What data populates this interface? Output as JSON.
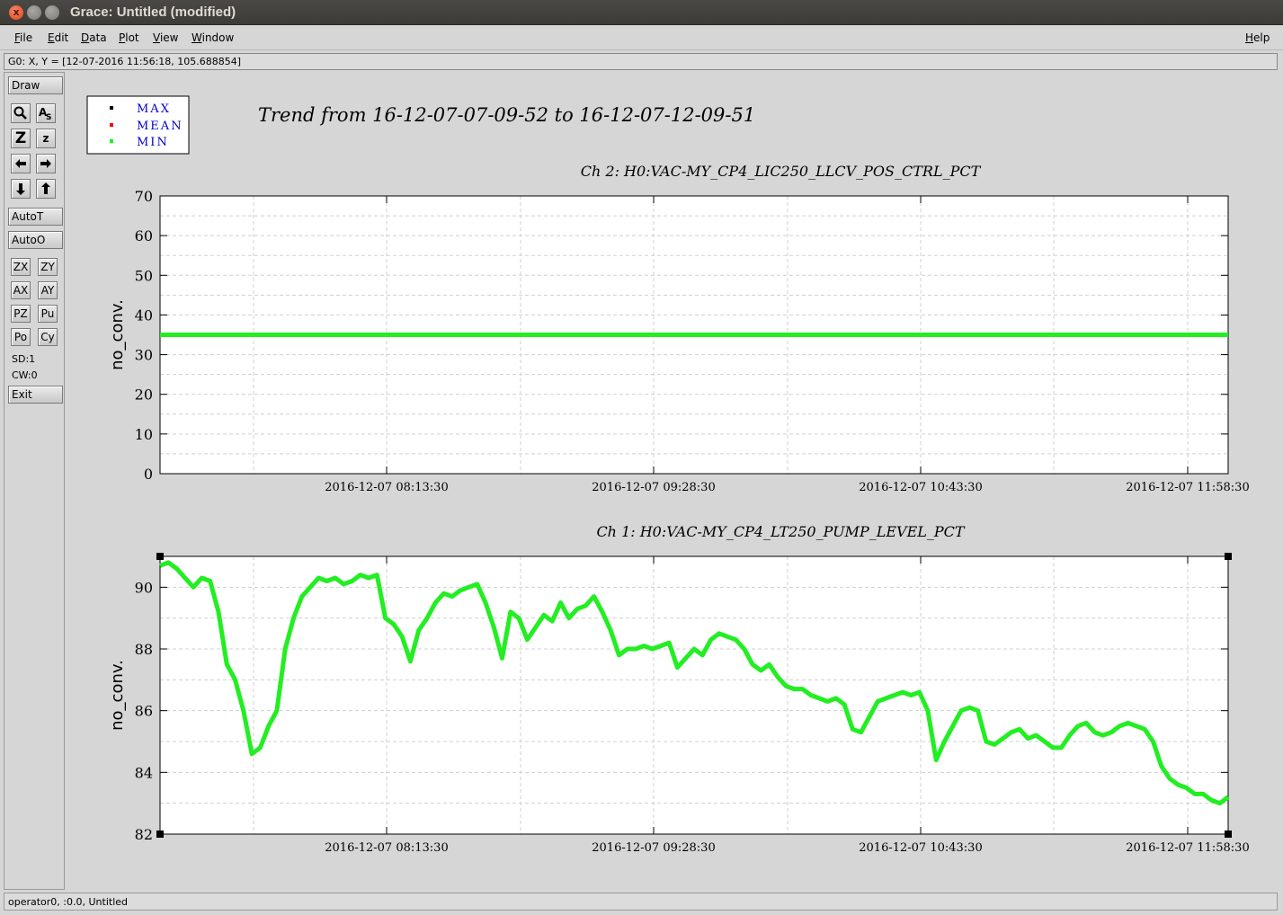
{
  "window": {
    "title": "Grace: Untitled (modified)",
    "close_glyph": "x"
  },
  "menu": {
    "items": [
      "File",
      "Edit",
      "Data",
      "Plot",
      "View",
      "Window"
    ],
    "help": "Help"
  },
  "locator": "G0: X, Y = [12-07-2016 11:56:18, 105.688854]",
  "toolbar": {
    "draw": "Draw",
    "autot": "AutoT",
    "autoo": "AutoO",
    "zx": "ZX",
    "zy": "ZY",
    "ax": "AX",
    "ay": "AY",
    "pz": "PZ",
    "pu": "Pu",
    "po": "Po",
    "cy": "Cy",
    "sd": "SD:1",
    "cw": "CW:0",
    "exit": "Exit",
    "icons": [
      "zoom-icon",
      "autoscale-text-icon",
      "zoom-in-icon",
      "zoom-out-icon",
      "left-arrow-icon",
      "right-arrow-icon",
      "down-arrow-icon",
      "up-arrow-icon"
    ]
  },
  "statusbar": "operator0, :0.0, Untitled",
  "chart_data": {
    "title": "Trend from 16-12-07-07-09-52 to 16-12-07-12-09-51",
    "legend": {
      "position": "top-left",
      "entries": [
        {
          "name": "MAX",
          "color": "#000000"
        },
        {
          "name": "MEAN",
          "color": "#ff0000"
        },
        {
          "name": "MIN",
          "color": "#00ff00"
        }
      ]
    },
    "plots": [
      {
        "type": "line",
        "title": "Ch 2: H0:VAC-MY_CP4_LIC250_LLCV_POS_CTRL_PCT",
        "ylabel": "no_conv.",
        "ylim": [
          0,
          70
        ],
        "yticks": [
          0,
          10,
          20,
          30,
          40,
          50,
          60,
          70
        ],
        "xtick_labels": [
          "2016-12-07 08:13:30",
          "2016-12-07 09:28:30",
          "2016-12-07 10:43:30",
          "2016-12-07 11:58:30"
        ],
        "grid": true,
        "series_values": [
          35.0,
          35.0,
          35.0,
          35.0,
          35.0
        ]
      },
      {
        "type": "line",
        "title": "Ch 1: H0:VAC-MY_CP4_LT250_PUMP_LEVEL_PCT",
        "ylabel": "no_conv.",
        "ylim": [
          82,
          91
        ],
        "yticks": [
          82,
          84,
          86,
          88,
          90
        ],
        "xtick_labels": [
          "2016-12-07 08:13:30",
          "2016-12-07 09:28:30",
          "2016-12-07 10:43:30",
          "2016-12-07 11:58:30"
        ],
        "grid": true,
        "series_values": [
          90.7,
          90.8,
          90.6,
          90.3,
          90.0,
          90.3,
          90.2,
          89.2,
          87.5,
          87.0,
          86.0,
          84.6,
          84.8,
          85.5,
          86.0,
          88.0,
          89.0,
          89.7,
          90.0,
          90.3,
          90.2,
          90.3,
          90.1,
          90.2,
          90.4,
          90.3,
          90.4,
          89.0,
          88.8,
          88.4,
          87.6,
          88.6,
          89.0,
          89.5,
          89.8,
          89.7,
          89.9,
          90.0,
          90.1,
          89.5,
          88.7,
          87.7,
          89.2,
          89.0,
          88.3,
          88.7,
          89.1,
          88.9,
          89.5,
          89.0,
          89.3,
          89.4,
          89.7,
          89.2,
          88.6,
          87.8,
          88.0,
          88.0,
          88.1,
          88.0,
          88.1,
          88.2,
          87.4,
          87.7,
          88.0,
          87.8,
          88.3,
          88.5,
          88.4,
          88.3,
          88.0,
          87.5,
          87.3,
          87.5,
          87.1,
          86.8,
          86.7,
          86.7,
          86.5,
          86.4,
          86.3,
          86.4,
          86.2,
          85.4,
          85.3,
          85.8,
          86.3,
          86.4,
          86.5,
          86.6,
          86.5,
          86.6,
          86.0,
          84.4,
          85.0,
          85.5,
          86.0,
          86.1,
          86.0,
          85.0,
          84.9,
          85.1,
          85.3,
          85.4,
          85.1,
          85.2,
          85.0,
          84.8,
          84.8,
          85.2,
          85.5,
          85.6,
          85.3,
          85.2,
          85.3,
          85.5,
          85.6,
          85.5,
          85.4,
          85.0,
          84.2,
          83.8,
          83.6,
          83.5,
          83.3,
          83.3,
          83.1,
          83.0,
          83.2
        ]
      }
    ]
  }
}
